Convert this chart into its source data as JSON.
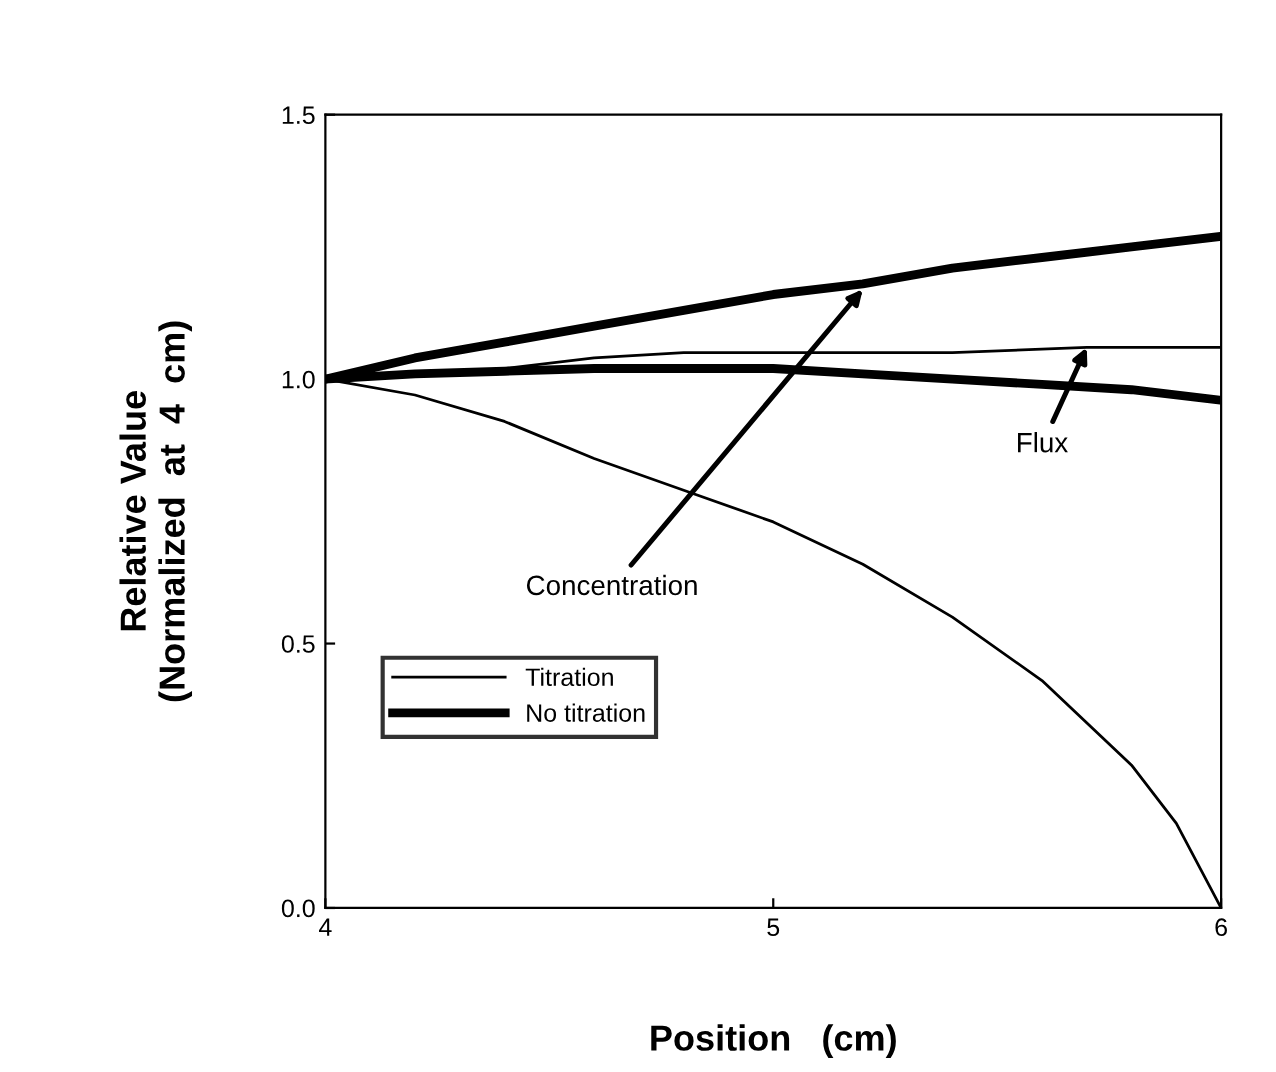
{
  "chart_data": {
    "type": "line",
    "xlabel": "Position   (cm)",
    "ylabel": "Relative Value\n(Normalized  at  4  cm)",
    "xlim": [
      4,
      6
    ],
    "ylim": [
      0,
      1.5
    ],
    "xticks": [
      4,
      5,
      6
    ],
    "yticks": [
      {
        "value": 0,
        "label": "0.0"
      },
      {
        "value": 0.5,
        "label": "0.5"
      },
      {
        "value": 1,
        "label": "1.0"
      },
      {
        "value": 1.5,
        "label": "1.5"
      }
    ],
    "series": [
      {
        "name": "Titration",
        "color": "#000000",
        "x": [
          4,
          4.2,
          4.4,
          4.6,
          4.8,
          5,
          5.2,
          5.4,
          5.6,
          5.8,
          5.9,
          6
        ],
        "values": [
          1.0,
          0.97,
          0.92,
          0.85,
          0.79,
          0.73,
          0.65,
          0.55,
          0.43,
          0.27,
          0.16,
          0.0
        ]
      },
      {
        "color": "#000000",
        "x": [
          4,
          4.2,
          4.4,
          4.6,
          4.8,
          5,
          5.4,
          5.7,
          6
        ],
        "values": [
          1.0,
          1.01,
          1.02,
          1.04,
          1.05,
          1.05,
          1.05,
          1.06,
          1.06
        ]
      },
      {
        "name": "No titration",
        "color": "#000000",
        "x": [
          4,
          4.2,
          4.4,
          4.6,
          4.8,
          5,
          5.2,
          5.4,
          5.6,
          5.8,
          6
        ],
        "values": [
          1.0,
          1.01,
          1.015,
          1.02,
          1.02,
          1.02,
          1.01,
          1.0,
          0.99,
          0.98,
          0.96
        ]
      },
      {
        "color": "#000000",
        "x": [
          4,
          4.2,
          4.4,
          4.6,
          4.8,
          5,
          5.2,
          5.4,
          5.6,
          5.8,
          6
        ],
        "values": [
          1.0,
          1.04,
          1.07,
          1.1,
          1.13,
          1.16,
          1.18,
          1.21,
          1.23,
          1.25,
          1.27
        ]
      }
    ],
    "annotations": [
      {
        "text": "Concentration",
        "x": 5.2,
        "y": 1.17
      },
      {
        "text": "Flux",
        "x": 5.7,
        "y": 1.06
      }
    ],
    "legend": "bottom left",
    "grid": false,
    "marker": "none",
    "line_style": "solid"
  }
}
